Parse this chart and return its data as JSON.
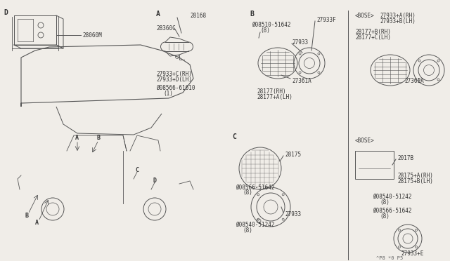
{
  "title": "",
  "bg_color": "#f0ede8",
  "line_color": "#555555",
  "text_color": "#333333",
  "fig_width": 6.4,
  "fig_height": 3.72,
  "watermark": "^P8 *0 P5",
  "sections": {
    "D_label": "D",
    "D_part": "28060M",
    "A_label": "A",
    "A_parts": [
      "28168",
      "28360C",
      "27933+C(RH)",
      "27933+D(LH)",
      "08566-61610",
      "(1)"
    ],
    "B_label": "B",
    "B_parts": [
      "27933F",
      "08510-51642",
      "(8)",
      "27933",
      "27361A",
      "28177(RH)",
      "28177+A(LH)"
    ],
    "BOSE_B_parts": [
      "<BOSE>",
      "27933+A(RH)",
      "27933+B(LH)",
      "28177+B(RH)",
      "28177+C(LH)",
      "27361A"
    ],
    "C_label": "C",
    "C_parts": [
      "28175",
      "08566-51642",
      "(8)",
      "27933",
      "08540-51242",
      "(8)"
    ],
    "BOSE_C_parts": [
      "<BOSE>",
      "2017B",
      "28175+A(RH)",
      "28175+B(LH)",
      "08540-51242",
      "(8)",
      "08566-51642",
      "(8)",
      "27933+E"
    ]
  }
}
